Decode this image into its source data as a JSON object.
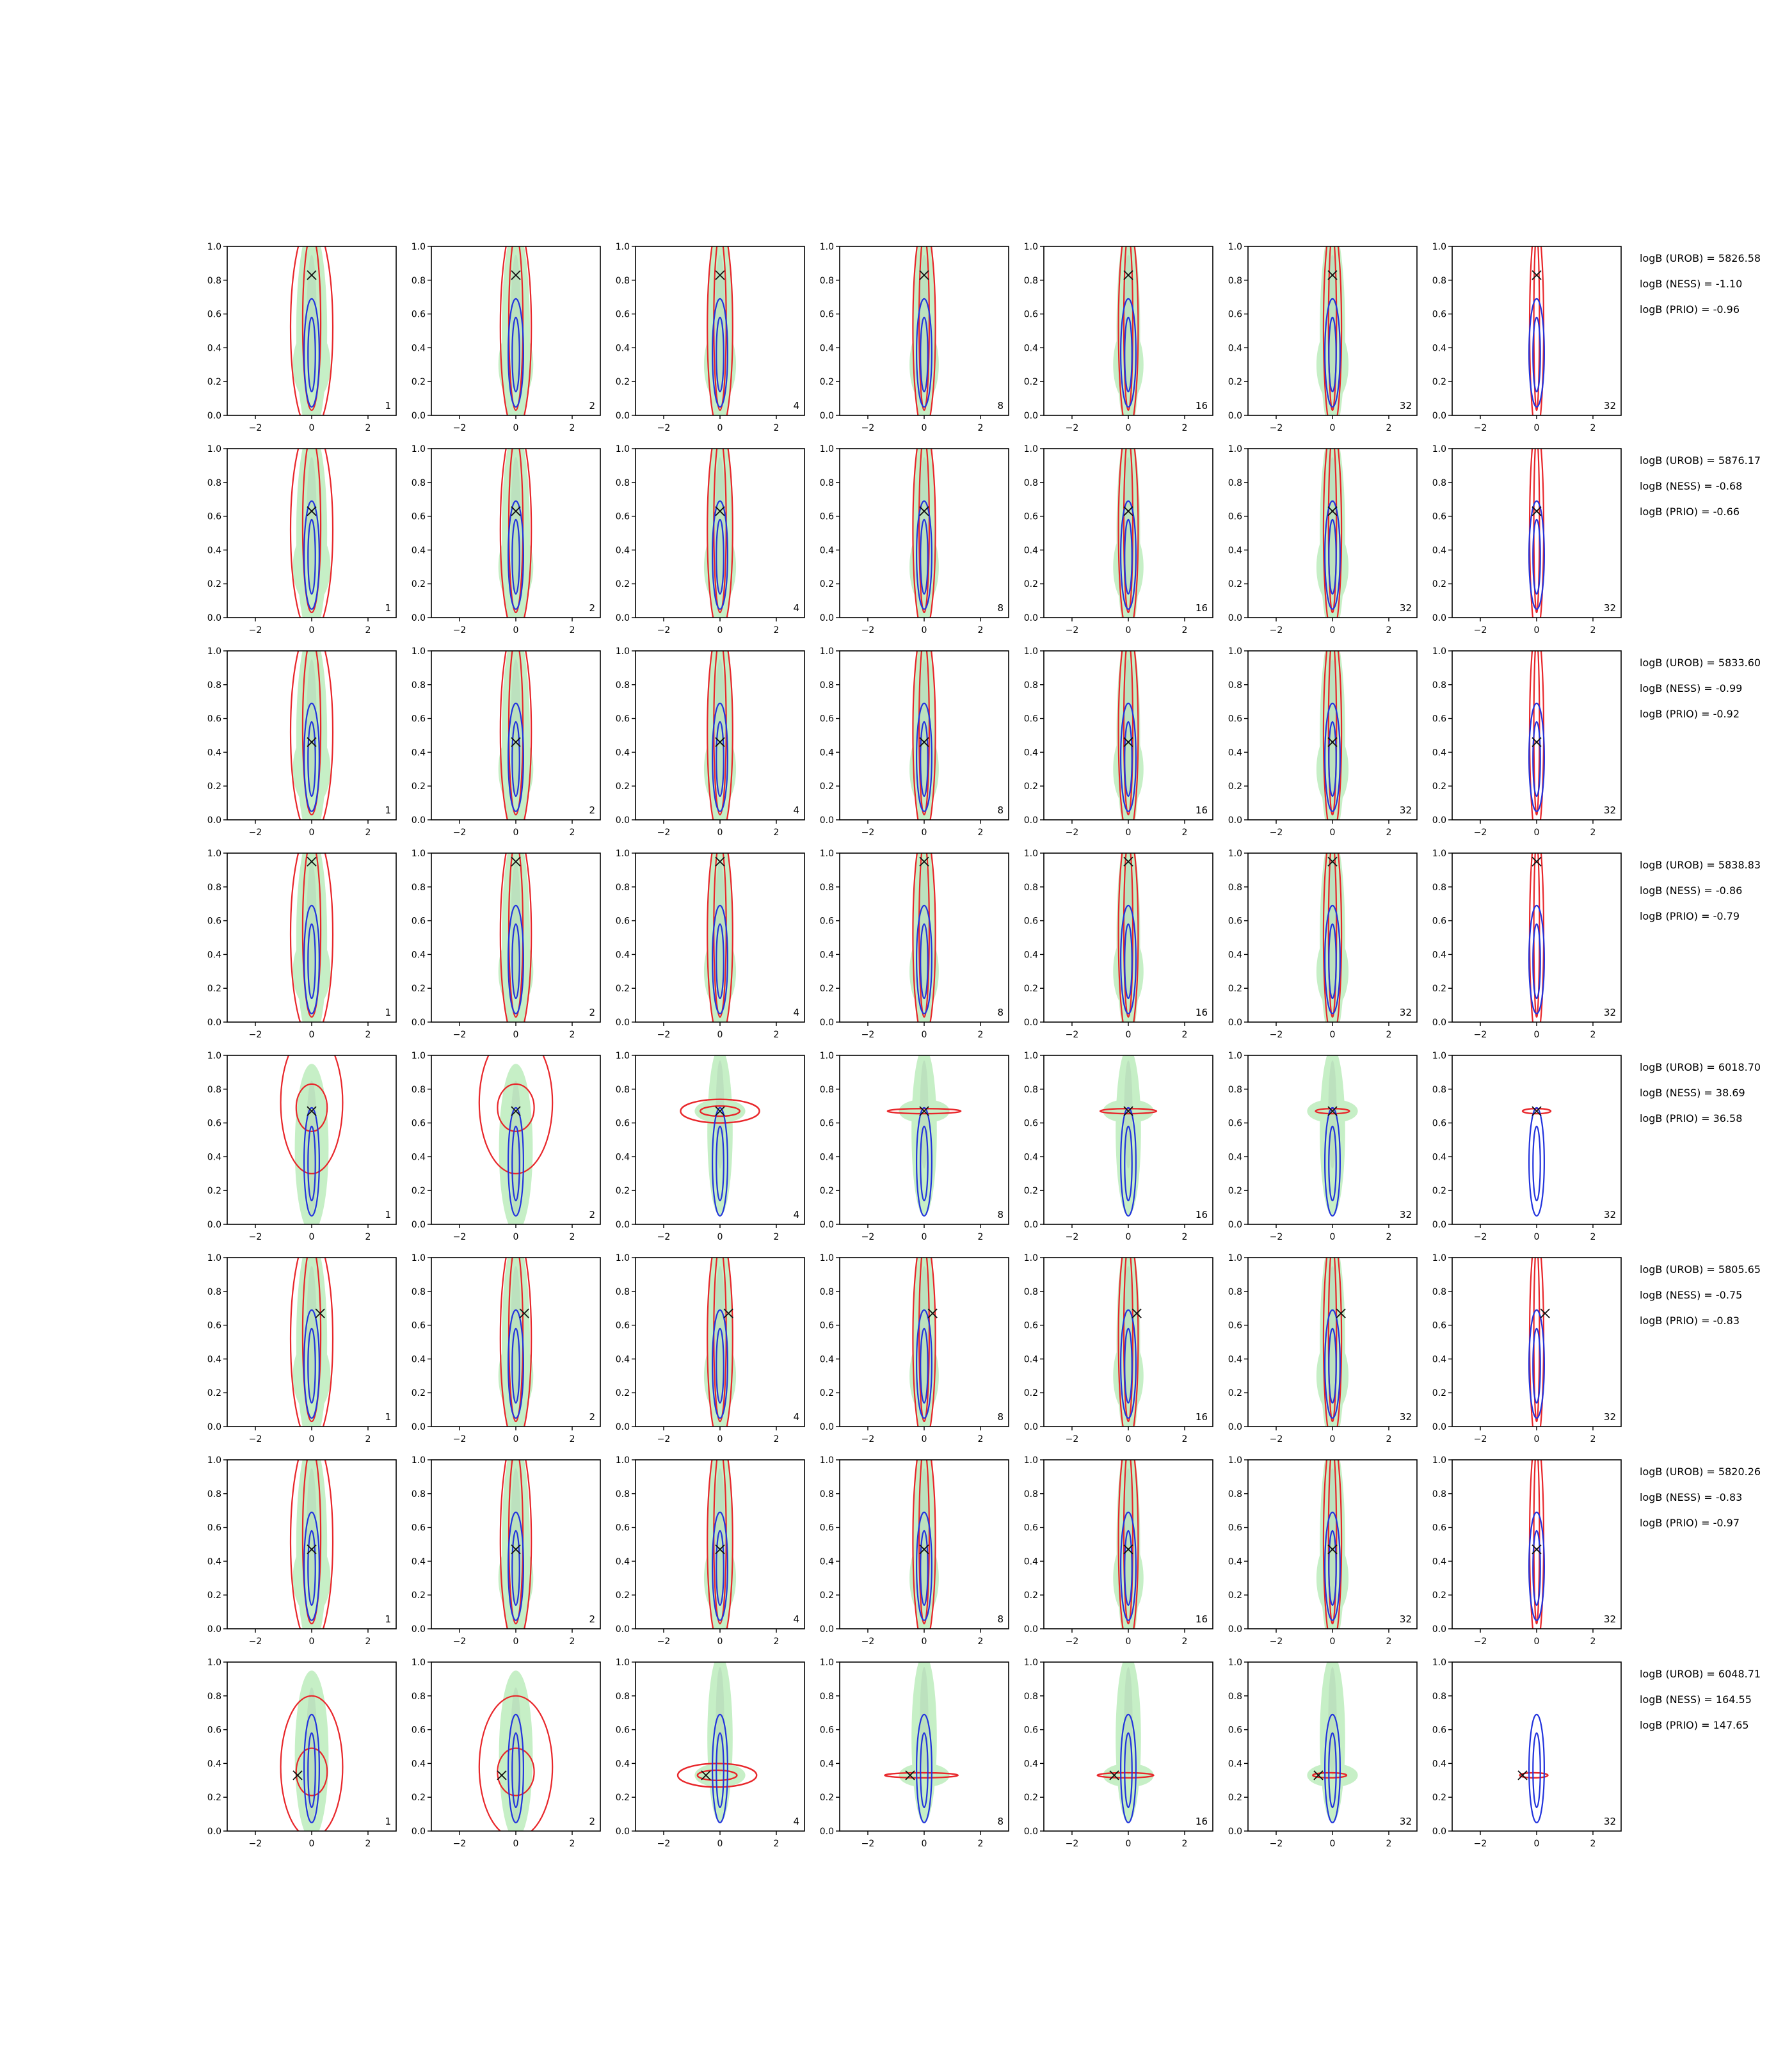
{
  "chart_data": {
    "type": "contour-grid",
    "rows": 8,
    "cols": 7,
    "xlim": [
      -3,
      3
    ],
    "ylim": [
      0,
      1
    ],
    "xticks": [
      -2,
      0,
      2
    ],
    "yticks": [
      0.0,
      0.2,
      0.4,
      0.6,
      0.8,
      1.0
    ],
    "xtick_labels": [
      "−2",
      "0",
      "2"
    ],
    "ytick_labels": [
      "0.0",
      "0.2",
      "0.4",
      "0.6",
      "0.8",
      "1.0"
    ],
    "panel_labels": [
      "1",
      "2",
      "4",
      "8",
      "16",
      "32",
      "32"
    ],
    "colors": {
      "fill": "#c6efc6",
      "fill_dark": "#a9c9b0",
      "red": "#e8262a",
      "blue": "#2233dd",
      "marker": "#111111",
      "axis": "#000000"
    },
    "true_points": [
      {
        "x": 0.0,
        "y": 0.83
      },
      {
        "x": 0.0,
        "y": 0.63
      },
      {
        "x": 0.0,
        "y": 0.46
      },
      {
        "x": 0.0,
        "y": 0.95
      },
      {
        "x": 0.0,
        "y": 0.67
      },
      {
        "x": 0.3,
        "y": 0.67
      },
      {
        "x": 0.0,
        "y": 0.47
      },
      {
        "x": -0.5,
        "y": 0.33
      }
    ],
    "row_modes": [
      "vertical",
      "vertical",
      "vertical",
      "vertical",
      "horizontal",
      "vertical",
      "vertical",
      "horizontal"
    ],
    "annotations": [
      [
        "logB (UROB) = 5826.58",
        "logB (NESS) = -1.10",
        "logB (PRIO) = -0.96"
      ],
      [
        "logB (UROB) = 5876.17",
        "logB (NESS) = -0.68",
        "logB (PRIO) = -0.66"
      ],
      [
        "logB (UROB) = 5833.60",
        "logB (NESS) = -0.99",
        "logB (PRIO) = -0.92"
      ],
      [
        "logB (UROB) = 5838.83",
        "logB (NESS) = -0.86",
        "logB (PRIO) = -0.79"
      ],
      [
        "logB (UROB) = 6018.70",
        "logB (NESS) = 38.69",
        "logB (PRIO) = 36.58"
      ],
      [
        "logB (UROB) = 5805.65",
        "logB (NESS) = -0.75",
        "logB (PRIO) = -0.83"
      ],
      [
        "logB (UROB) = 5820.26",
        "logB (NESS) = -0.83",
        "logB (PRIO) = -0.97"
      ],
      [
        "logB (UROB) = 6048.71",
        "logB (NESS) = 164.55",
        "logB (PRIO) = 147.65"
      ]
    ]
  }
}
